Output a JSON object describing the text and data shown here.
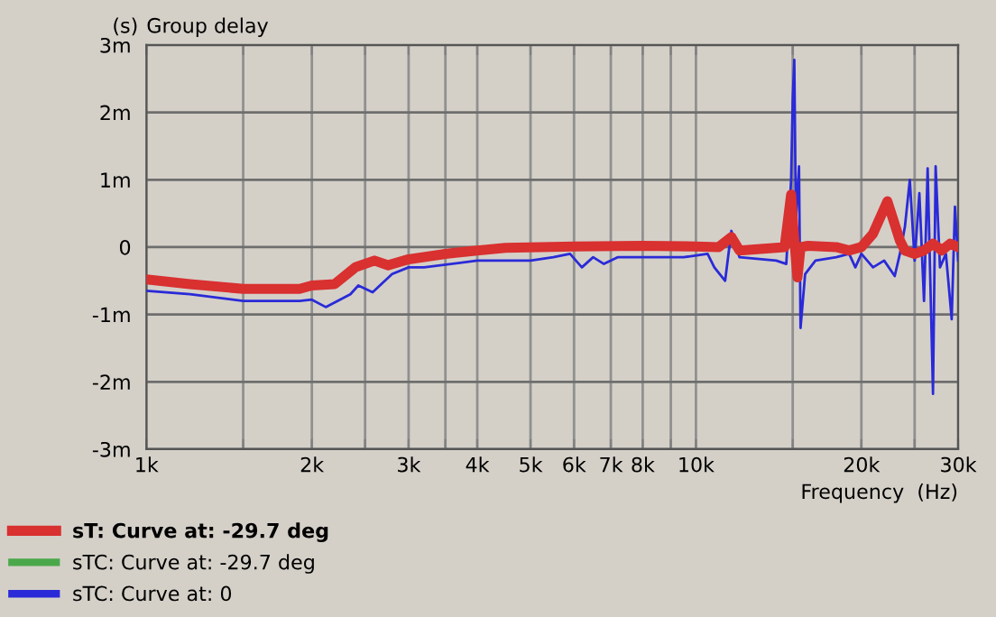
{
  "chart_data": {
    "type": "line",
    "title": "Group delay",
    "ylabel": "(s)",
    "xlabel": "Frequency  (Hz)",
    "log": "x",
    "xlim": [
      1000,
      30000
    ],
    "xticks": [
      {
        "value": 1000,
        "label": "1k"
      },
      {
        "value": 1500,
        "label": null
      },
      {
        "value": 2000,
        "label": "2k"
      },
      {
        "value": 2500,
        "label": null
      },
      {
        "value": 3000,
        "label": "3k"
      },
      {
        "value": 3500,
        "label": null
      },
      {
        "value": 4000,
        "label": "4k"
      },
      {
        "value": 5000,
        "label": "5k"
      },
      {
        "value": 6000,
        "label": "6k"
      },
      {
        "value": 7000,
        "label": "7k"
      },
      {
        "value": 8000,
        "label": "8k"
      },
      {
        "value": 9000,
        "label": null
      },
      {
        "value": 10000,
        "label": "10k"
      },
      {
        "value": 15000,
        "label": null
      },
      {
        "value": 20000,
        "label": "20k"
      },
      {
        "value": 25000,
        "label": null
      },
      {
        "value": 30000,
        "label": "30k"
      }
    ],
    "ylim": [
      -3,
      3
    ],
    "yticks": [
      {
        "value": -3,
        "label": "-3m"
      },
      {
        "value": -2,
        "label": "-2m"
      },
      {
        "value": -1,
        "label": "-1m"
      },
      {
        "value": 0,
        "label": "0"
      },
      {
        "value": 1,
        "label": "1m"
      },
      {
        "value": 2,
        "label": "2m"
      },
      {
        "value": 3,
        "label": "3m"
      }
    ],
    "grid": true,
    "legend": "bottom",
    "line_style": "solid",
    "marker": "none",
    "series": [
      {
        "name": "sT: Curve at: -29.7 deg",
        "color": "#d93030",
        "x": [
          1000,
          1200,
          1500,
          1900,
          2000,
          2200,
          2400,
          2600,
          2750,
          3000,
          3500,
          4000,
          4500,
          6000,
          8000,
          10000,
          11000,
          11600,
          12000,
          14500,
          14900,
          15000,
          15300,
          15500,
          16000,
          18000,
          19000,
          20000,
          21000,
          22300,
          23500,
          24000,
          25000,
          26000,
          27000,
          28000,
          29000,
          30000
        ],
        "values": [
          -0.48,
          -0.55,
          -0.62,
          -0.62,
          -0.57,
          -0.55,
          -0.3,
          -0.2,
          -0.27,
          -0.18,
          -0.1,
          -0.05,
          -0.01,
          0.01,
          0.02,
          0.01,
          0.0,
          0.15,
          -0.05,
          0.0,
          0.78,
          0.4,
          -0.45,
          0.0,
          0.02,
          0.0,
          -0.05,
          0.0,
          0.2,
          0.68,
          0.1,
          -0.05,
          -0.1,
          -0.05,
          0.05,
          -0.05,
          0.05,
          0.0
        ]
      },
      {
        "name": "sTC: Curve at: -29.7 deg",
        "color": "#4aa84a"
      },
      {
        "name": "sTC: Curve at: 0",
        "color": "#2a2ad8",
        "x": [
          1000,
          1200,
          1500,
          1900,
          2000,
          2120,
          2350,
          2430,
          2580,
          2800,
          3000,
          3200,
          4000,
          5000,
          5500,
          5900,
          6200,
          6500,
          6800,
          7200,
          8000,
          9500,
          10500,
          10800,
          11300,
          11600,
          12000,
          14000,
          14600,
          14900,
          15000,
          15100,
          15200,
          15400,
          15500,
          15800,
          16500,
          18000,
          19000,
          19500,
          20000,
          21000,
          22000,
          23000,
          23500,
          24000,
          24500,
          25000,
          25500,
          26000,
          26400,
          27000,
          27300,
          27800,
          28500,
          29200,
          29600,
          30000
        ],
        "values": [
          -0.65,
          -0.7,
          -0.8,
          -0.8,
          -0.78,
          -0.89,
          -0.7,
          -0.57,
          -0.67,
          -0.4,
          -0.3,
          -0.3,
          -0.2,
          -0.2,
          -0.15,
          -0.1,
          -0.3,
          -0.15,
          -0.25,
          -0.15,
          -0.15,
          -0.15,
          -0.1,
          -0.3,
          -0.5,
          0.24,
          -0.15,
          -0.2,
          -0.25,
          1.0,
          2.2,
          2.78,
          0.4,
          1.2,
          -1.2,
          -0.4,
          -0.2,
          -0.15,
          -0.1,
          -0.3,
          -0.1,
          -0.3,
          -0.2,
          -0.43,
          -0.1,
          0.3,
          1.0,
          -0.2,
          0.8,
          -0.8,
          1.17,
          -2.18,
          1.2,
          -0.3,
          -0.1,
          -1.07,
          0.6,
          -0.2
        ]
      }
    ]
  }
}
